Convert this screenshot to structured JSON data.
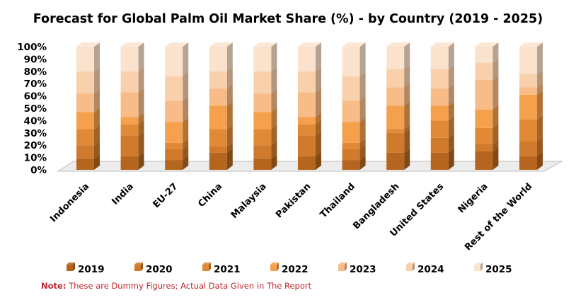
{
  "chart_data": {
    "type": "bar",
    "stacked": true,
    "percent_stacked": true,
    "three_d": true,
    "title": "Forecast for Global Palm Oil Market Share (%) - by Country (2019 - 2025)",
    "categories": [
      "Indonesia",
      "India",
      "EU-27",
      "China",
      "Malaysia",
      "Pakistan",
      "Thailand",
      "Bangladesh",
      "United States",
      "Nigeria",
      "Rest of the World"
    ],
    "y_ticks": [
      "0%",
      "10%",
      "20%",
      "30%",
      "40%",
      "50%",
      "60%",
      "70%",
      "80%",
      "90%",
      "100%"
    ],
    "ylim": [
      0,
      100
    ],
    "legend_position": "bottom",
    "series": [
      {
        "name": "2019",
        "color": "#b5651d",
        "values": [
          9,
          11,
          8,
          14,
          9,
          11,
          8,
          14,
          14,
          15,
          11
        ]
      },
      {
        "name": "2020",
        "color": "#cf7a2c",
        "values": [
          11,
          17,
          9,
          5,
          11,
          17,
          9,
          16,
          12,
          6,
          12
        ]
      },
      {
        "name": "2021",
        "color": "#e08a37",
        "values": [
          13,
          9,
          5,
          14,
          13,
          9,
          5,
          3,
          14,
          13,
          18
        ]
      },
      {
        "name": "2022",
        "color": "#f4a04c",
        "values": [
          14,
          6,
          17,
          19,
          14,
          6,
          17,
          19,
          12,
          15,
          20
        ]
      },
      {
        "name": "2023",
        "color": "#f7bc88",
        "values": [
          15,
          20,
          17,
          14,
          15,
          20,
          17,
          15,
          14,
          24,
          6
        ]
      },
      {
        "name": "2024",
        "color": "#f9d0ac",
        "values": [
          18,
          17,
          20,
          14,
          18,
          17,
          20,
          15,
          16,
          14,
          11
        ]
      },
      {
        "name": "2025",
        "color": "#fbe2cc",
        "values": [
          20,
          20,
          24,
          20,
          20,
          20,
          24,
          18,
          18,
          13,
          22
        ]
      }
    ]
  },
  "note": {
    "label": "Note:",
    "text": " These are Dummy Figures; Actual Data Given in The Report"
  }
}
